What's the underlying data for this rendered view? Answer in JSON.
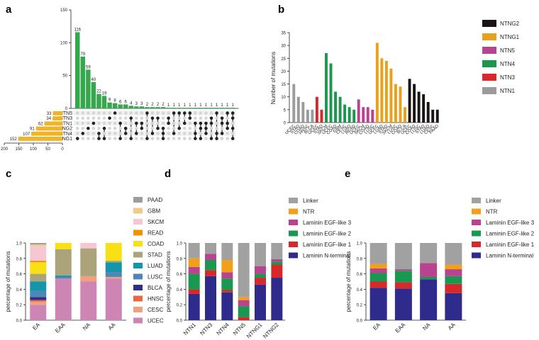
{
  "chart_data": [
    {
      "panel": "a",
      "type": "bar",
      "title": "",
      "intersection_values": [
        116,
        79,
        59,
        40,
        22,
        19,
        9,
        8,
        6,
        6,
        4,
        3,
        3,
        2,
        2,
        2,
        2,
        1,
        1,
        1,
        1,
        1,
        1,
        1,
        1,
        1,
        1,
        1,
        1,
        1
      ],
      "ylim": [
        0,
        150
      ],
      "yticks": [
        0,
        50,
        100,
        150
      ],
      "sets": [
        {
          "name": "NTN5",
          "size": 33
        },
        {
          "name": "NTN3",
          "size": 34
        },
        {
          "name": "NTN1",
          "size": 62
        },
        {
          "name": "NTNG2",
          "size": 91
        },
        {
          "name": "NTN4",
          "size": 107
        },
        {
          "name": "NTNG1",
          "size": 152
        }
      ],
      "set_size_ticks": [
        200,
        150,
        100,
        50,
        0
      ],
      "xlabel": "",
      "ylabel": ""
    },
    {
      "panel": "b",
      "type": "bar",
      "ylabel": "Number of mutations",
      "xlabel": "",
      "ylim": [
        0,
        35
      ],
      "yticks": [
        0,
        5,
        10,
        15,
        20,
        25,
        30,
        35
      ],
      "categories": [
        "UCEC",
        "STAD",
        "COAD",
        "HNSC",
        "BLCA",
        "UCEC",
        "STAD",
        "SKCM",
        "UCEC",
        "COAD",
        "GBM",
        "CESC",
        "LUAD",
        "READ",
        "UCEC",
        "SKCM",
        "COAD",
        "LUSC",
        "UCEC",
        "LUAD",
        "STAD",
        "SKCM",
        "LUSC",
        "COAD",
        "BLCA",
        "UCEC",
        "COAD",
        "LUSC",
        "STAD",
        "LUAD",
        "CESC",
        "PAAD"
      ],
      "values": [
        15,
        10,
        8,
        5,
        5,
        10,
        5,
        27,
        23,
        12,
        10,
        7,
        6,
        5,
        9,
        6,
        6,
        5,
        31,
        25,
        24,
        21,
        15,
        14,
        6,
        17,
        15,
        12,
        11,
        8,
        5,
        5
      ],
      "groups": [
        "NTN1",
        "NTN1",
        "NTN1",
        "NTN1",
        "NTN1",
        "NTN3",
        "NTN3",
        "NTN4",
        "NTN4",
        "NTN4",
        "NTN4",
        "NTN4",
        "NTN4",
        "NTN4",
        "NTN5",
        "NTN5",
        "NTN5",
        "NTN5",
        "NTNG1",
        "NTNG1",
        "NTNG1",
        "NTNG1",
        "NTNG1",
        "NTNG1",
        "NTNG1",
        "NTNG2",
        "NTNG2",
        "NTNG2",
        "NTNG2",
        "NTNG2",
        "NTNG2",
        "NTNG2"
      ],
      "legend": [
        {
          "name": "NTNG2",
          "color": "#1b1414"
        },
        {
          "name": "NTNG1",
          "color": "#e9a11d"
        },
        {
          "name": "NTN5",
          "color": "#b8438e"
        },
        {
          "name": "NTN4",
          "color": "#1a9850"
        },
        {
          "name": "NTN3",
          "color": "#d7282c"
        },
        {
          "name": "NTN1",
          "color": "#9b9b9b"
        }
      ]
    },
    {
      "panel": "c",
      "type": "bar",
      "stacked": true,
      "ylabel": "percentage of mutations",
      "xlabel": "",
      "ylim": [
        0,
        1.0
      ],
      "yticks": [
        "0.0",
        "0.2",
        "0.4",
        "0.6",
        "0.8",
        "1.0"
      ],
      "categories": [
        "EA",
        "EAA",
        "NA",
        "AA"
      ],
      "series": [
        {
          "name": "UCEC",
          "color": "#cd85b3",
          "values": [
            0.2,
            0.54,
            0.5,
            0.54
          ]
        },
        {
          "name": "CESC",
          "color": "#f0a07f",
          "values": [
            0.04,
            0.0,
            0.07,
            0.02
          ]
        },
        {
          "name": "HNSC",
          "color": "#e8673d",
          "values": [
            0.02,
            0.0,
            0.0,
            0.0
          ]
        },
        {
          "name": "BLCA",
          "color": "#2f2f86",
          "values": [
            0.04,
            0.0,
            0.0,
            0.0
          ]
        },
        {
          "name": "LUSC",
          "color": "#4d87b8",
          "values": [
            0.08,
            0.02,
            0.0,
            0.06
          ]
        },
        {
          "name": "LUAD",
          "color": "#1595a9",
          "values": [
            0.12,
            0.02,
            0.0,
            0.13
          ]
        },
        {
          "name": "STAD",
          "color": "#aba47a",
          "values": [
            0.1,
            0.34,
            0.36,
            0.02
          ]
        },
        {
          "name": "COAD",
          "color": "#f8e015",
          "values": [
            0.15,
            0.08,
            0.0,
            0.23
          ]
        },
        {
          "name": "READ",
          "color": "#ef9100",
          "values": [
            0.02,
            0.0,
            0.0,
            0.0
          ]
        },
        {
          "name": "SKCM",
          "color": "#f6c6d2",
          "values": [
            0.19,
            0.0,
            0.07,
            0.0
          ]
        },
        {
          "name": "GBM",
          "color": "#f1cb88",
          "values": [
            0.02,
            0.0,
            0.0,
            0.0
          ]
        },
        {
          "name": "PAAD",
          "color": "#9d9d9d",
          "values": [
            0.02,
            0.0,
            0.0,
            0.0
          ]
        }
      ]
    },
    {
      "panel": "d",
      "type": "bar",
      "stacked": true,
      "ylabel": "percentage of mutations",
      "xlabel": "",
      "ylim": [
        0,
        1.0
      ],
      "yticks": [
        "0.0",
        "0.2",
        "0.4",
        "0.6",
        "0.8",
        "1.0"
      ],
      "categories": [
        "NTN1",
        "NTN3",
        "NTN4",
        "NTN5",
        "NTNG1",
        "NTNG2"
      ],
      "series": [
        {
          "name": "Laminin N-terminal",
          "color": "#2e2b8c",
          "values": [
            0.34,
            0.57,
            0.36,
            0.0,
            0.46,
            0.55
          ]
        },
        {
          "name": "Laminin EGF-like 1",
          "color": "#d7282c",
          "values": [
            0.06,
            0.08,
            0.03,
            0.04,
            0.09,
            0.17
          ]
        },
        {
          "name": "Laminin EGF-like 2",
          "color": "#1a9850",
          "values": [
            0.2,
            0.13,
            0.15,
            0.14,
            0.05,
            0.04
          ]
        },
        {
          "name": "Laminin EGF-like 3",
          "color": "#b8438e",
          "values": [
            0.09,
            0.08,
            0.08,
            0.08,
            0.1,
            0.03
          ]
        },
        {
          "name": "NTR",
          "color": "#f29f1b",
          "values": [
            0.11,
            0.0,
            0.16,
            0.04,
            0.0,
            0.0
          ]
        },
        {
          "name": "Linker",
          "color": "#a1a1a1",
          "values": [
            0.2,
            0.14,
            0.22,
            0.7,
            0.3,
            0.21
          ]
        }
      ]
    },
    {
      "panel": "e",
      "type": "bar",
      "stacked": true,
      "ylabel": "percentage of mutations",
      "xlabel": "",
      "ylim": [
        0,
        1.0
      ],
      "yticks": [
        "0.0",
        "0.2",
        "0.4",
        "0.6",
        "0.8",
        "1.0"
      ],
      "categories": [
        "EA",
        "EAA",
        "NA",
        "AA"
      ],
      "series": [
        {
          "name": "Laminin N-terminal",
          "color": "#2e2b8c",
          "values": [
            0.42,
            0.41,
            0.53,
            0.35
          ]
        },
        {
          "name": "Laminin EGF-like 1",
          "color": "#d7282c",
          "values": [
            0.08,
            0.08,
            0.0,
            0.12
          ]
        },
        {
          "name": "Laminin EGF-like 2",
          "color": "#1a9850",
          "values": [
            0.11,
            0.15,
            0.03,
            0.1
          ]
        },
        {
          "name": "Laminin EGF-like 3",
          "color": "#b8438e",
          "values": [
            0.06,
            0.02,
            0.18,
            0.09
          ]
        },
        {
          "name": "NTR",
          "color": "#f29f1b",
          "values": [
            0.06,
            0.0,
            0.0,
            0.06
          ]
        },
        {
          "name": "Linker",
          "color": "#a1a1a1",
          "values": [
            0.27,
            0.34,
            0.26,
            0.28
          ]
        }
      ]
    }
  ],
  "panel_labels": [
    "a",
    "b",
    "c",
    "d",
    "e"
  ]
}
